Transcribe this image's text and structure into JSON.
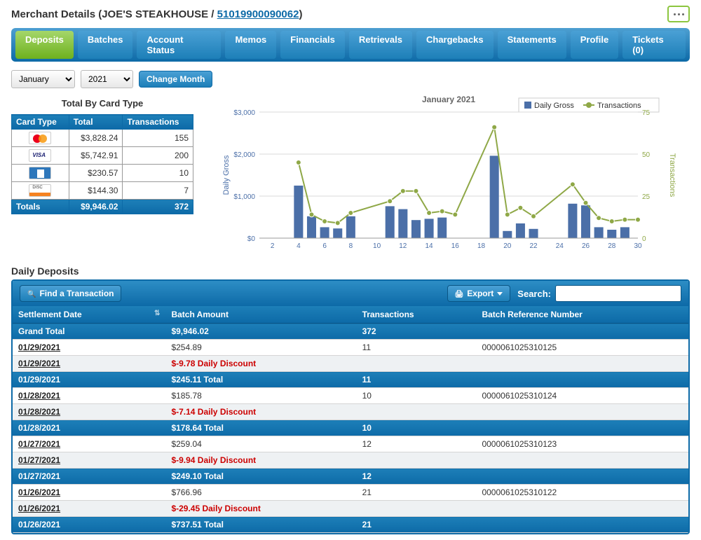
{
  "header": {
    "prefix": "Merchant Details (",
    "merchant_name": "JOE'S STEAKHOUSE",
    "sep": " / ",
    "merchant_id": "51019900090062",
    "suffix": ")"
  },
  "tabs": [
    "Deposits",
    "Batches",
    "Account Status",
    "Memos",
    "Financials",
    "Retrievals",
    "Chargebacks",
    "Statements",
    "Profile",
    "Tickets (0)"
  ],
  "tabs_active_index": 0,
  "filter": {
    "month_options": [
      "January"
    ],
    "month_selected": "January",
    "year_options": [
      "2021"
    ],
    "year_selected": "2021",
    "change_button": "Change Month"
  },
  "card_type_section": {
    "title": "Total By Card Type",
    "columns": [
      "Card Type",
      "Total",
      "Transactions"
    ],
    "rows": [
      {
        "icon": "mc",
        "total": "$3,828.24",
        "txn": "155"
      },
      {
        "icon": "visa",
        "total": "$5,742.91",
        "txn": "200"
      },
      {
        "icon": "amex",
        "total": "$230.57",
        "txn": "10"
      },
      {
        "icon": "disc",
        "total": "$144.30",
        "txn": "7"
      }
    ],
    "totals_label": "Totals",
    "totals_total": "$9,946.02",
    "totals_txn": "372"
  },
  "chart": {
    "title": "January 2021",
    "legend": [
      "Daily Gross",
      "Transactions"
    ],
    "y1_label": "Daily Gross",
    "y2_label": "Transactions",
    "y1_ticks": [
      "$0",
      "$1,000",
      "$2,000",
      "$3,000"
    ],
    "y1_range": [
      0,
      3000
    ],
    "y2_ticks": [
      "0",
      "25",
      "50",
      "75"
    ],
    "y2_range": [
      0,
      75
    ],
    "x_ticks": [
      2,
      4,
      6,
      8,
      10,
      12,
      14,
      16,
      18,
      20,
      22,
      24,
      26,
      28,
      30
    ],
    "x_range": [
      1,
      30
    ],
    "bars": [
      {
        "x": 4,
        "v": 1250
      },
      {
        "x": 5,
        "v": 520
      },
      {
        "x": 6,
        "v": 260
      },
      {
        "x": 7,
        "v": 230
      },
      {
        "x": 8,
        "v": 520
      },
      {
        "x": 11,
        "v": 760
      },
      {
        "x": 12,
        "v": 690
      },
      {
        "x": 13,
        "v": 430
      },
      {
        "x": 14,
        "v": 460
      },
      {
        "x": 15,
        "v": 490
      },
      {
        "x": 19,
        "v": 1960
      },
      {
        "x": 20,
        "v": 170
      },
      {
        "x": 21,
        "v": 350
      },
      {
        "x": 22,
        "v": 220
      },
      {
        "x": 25,
        "v": 820
      },
      {
        "x": 26,
        "v": 780
      },
      {
        "x": 27,
        "v": 260
      },
      {
        "x": 28,
        "v": 200
      },
      {
        "x": 29,
        "v": 260
      }
    ],
    "line": [
      {
        "x": 4,
        "v": 45
      },
      {
        "x": 5,
        "v": 14
      },
      {
        "x": 6,
        "v": 10
      },
      {
        "x": 7,
        "v": 9
      },
      {
        "x": 8,
        "v": 15
      },
      {
        "x": 11,
        "v": 22
      },
      {
        "x": 12,
        "v": 28
      },
      {
        "x": 13,
        "v": 28
      },
      {
        "x": 14,
        "v": 15
      },
      {
        "x": 15,
        "v": 16
      },
      {
        "x": 16,
        "v": 14
      },
      {
        "x": 19,
        "v": 66
      },
      {
        "x": 20,
        "v": 14
      },
      {
        "x": 21,
        "v": 18
      },
      {
        "x": 22,
        "v": 13
      },
      {
        "x": 25,
        "v": 32
      },
      {
        "x": 26,
        "v": 21
      },
      {
        "x": 27,
        "v": 12
      },
      {
        "x": 28,
        "v": 10
      },
      {
        "x": 29,
        "v": 11
      },
      {
        "x": 30,
        "v": 11
      }
    ],
    "colors": {
      "bar": "#4b6fa8",
      "line": "#8fa847",
      "marker": "#8fa847",
      "grid": "#d8d8d8",
      "axis_text": "#4b6fa8",
      "y2_text": "#8fa847",
      "title": "#666"
    }
  },
  "daily_deposits": {
    "title": "Daily Deposits",
    "find_btn": "Find a Transaction",
    "export_btn": "Export",
    "search_label": "Search:",
    "columns": [
      "Settlement Date",
      "Batch Amount",
      "Transactions",
      "Batch Reference Number"
    ],
    "grand_label": "Grand Total",
    "grand_amount": "$9,946.02",
    "grand_txn": "372",
    "rows": [
      {
        "type": "data",
        "date": "01/29/2021",
        "amount": "$254.89",
        "txn": "11",
        "ref": "0000061025310125"
      },
      {
        "type": "discount",
        "date": "01/29/2021",
        "amount": "$-9.78 Daily Discount"
      },
      {
        "type": "subtotal",
        "date": "01/29/2021",
        "amount": "$245.11 Total",
        "txn": "11"
      },
      {
        "type": "data",
        "date": "01/28/2021",
        "amount": "$185.78",
        "txn": "10",
        "ref": "0000061025310124"
      },
      {
        "type": "discount",
        "date": "01/28/2021",
        "amount": "$-7.14 Daily Discount"
      },
      {
        "type": "subtotal",
        "date": "01/28/2021",
        "amount": "$178.64 Total",
        "txn": "10"
      },
      {
        "type": "data",
        "date": "01/27/2021",
        "amount": "$259.04",
        "txn": "12",
        "ref": "0000061025310123"
      },
      {
        "type": "discount",
        "date": "01/27/2021",
        "amount": "$-9.94 Daily Discount"
      },
      {
        "type": "subtotal",
        "date": "01/27/2021",
        "amount": "$249.10 Total",
        "txn": "12"
      },
      {
        "type": "data",
        "date": "01/26/2021",
        "amount": "$766.96",
        "txn": "21",
        "ref": "0000061025310122"
      },
      {
        "type": "discount",
        "date": "01/26/2021",
        "amount": "$-29.45 Daily Discount"
      },
      {
        "type": "subtotal",
        "date": "01/26/2021",
        "amount": "$737.51 Total",
        "txn": "21"
      }
    ]
  }
}
